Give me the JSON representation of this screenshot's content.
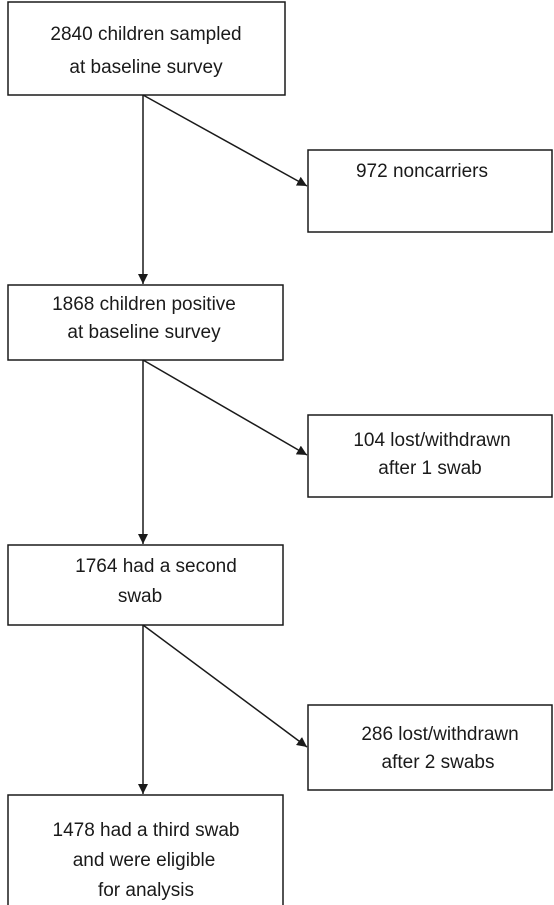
{
  "nodes": [
    {
      "lines": [
        "2840 children sampled",
        "at baseline survey"
      ]
    },
    {
      "lines": [
        "972 noncarriers"
      ]
    },
    {
      "lines": [
        "1868 children positive",
        "at baseline survey"
      ]
    },
    {
      "lines": [
        "104 lost/withdrawn",
        "after 1 swab"
      ]
    },
    {
      "lines": [
        "1764 had a second",
        "swab"
      ]
    },
    {
      "lines": [
        "286 lost/withdrawn",
        "after 2 swabs"
      ]
    },
    {
      "lines": [
        "1478 had a third swab",
        "and were eligible",
        "for analysis"
      ]
    }
  ]
}
